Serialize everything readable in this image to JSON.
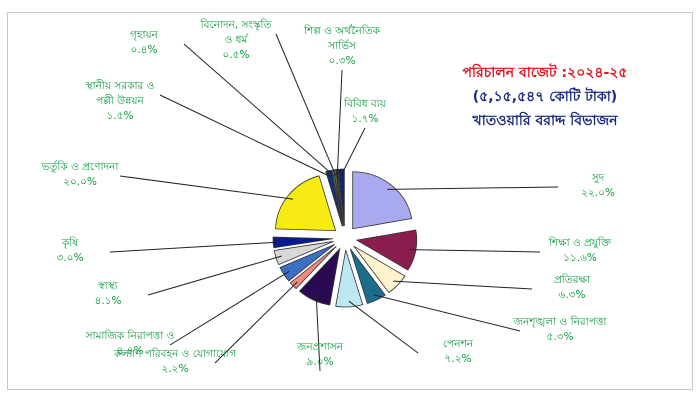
{
  "chart_data": {
    "type": "pie",
    "title": "পরিচালন বাজেট :২০২৪-২৫",
    "subtitle": "(৫,১৫,৫৪৭ কোটি টাকা)",
    "subtitle2": "খাতওয়ারি বরাদ্দ বিভাজন",
    "slices": [
      {
        "lines": [
          "সুদ",
          "২২.০%"
        ],
        "value": 22.0,
        "color": "#a9a9f0"
      },
      {
        "lines": [
          "শিক্ষা ও প্রযুক্তি",
          "১১.৬%"
        ],
        "value": 11.6,
        "color": "#8a1f4f"
      },
      {
        "lines": [
          "প্রতিরক্ষা",
          "৬.৩%"
        ],
        "value": 6.3,
        "color": "#fff2cc"
      },
      {
        "lines": [
          "জনশৃঙ্খলা ও নিরাপত্তা",
          "৫.৩%"
        ],
        "value": 5.3,
        "color": "#1a6e8c"
      },
      {
        "lines": [
          "পেনশন",
          "৭.২%"
        ],
        "value": 7.2,
        "color": "#bde8f2"
      },
      {
        "lines": [
          "জনপ্রশাসন",
          "৯.০%"
        ],
        "value": 9.0,
        "color": "#2a0a52"
      },
      {
        "lines": [
          "কল্যাণ পরিবহন ও যোগাযোগ",
          "২.২%"
        ],
        "value": 2.2,
        "color": "#f08a80"
      },
      {
        "lines": [
          "সামাজিক নিরাপত্তা ও",
          "৪.৪%"
        ],
        "value": 4.4,
        "color": "#3a6fc4"
      },
      {
        "lines": [
          "স্বাস্থ্য",
          "৪.১%"
        ],
        "value": 4.1,
        "color": "#d8d8d8"
      },
      {
        "lines": [
          "কৃষি",
          "৩.০%"
        ],
        "value": 3.0,
        "color": "#0b1a90"
      },
      {
        "lines": [
          "ভর্তুকি ও প্রণোদনা",
          "২০.০%"
        ],
        "value": 20.0,
        "color": "#f6ec14"
      },
      {
        "lines": [
          "স্থানীয় সরকার ও",
          "পল্লী উন্নয়ন",
          "১.৫%"
        ],
        "value": 1.5,
        "color": "#17306e"
      },
      {
        "lines": [
          "গৃহায়ন",
          "০.৪%"
        ],
        "value": 0.4,
        "color": "#3fb3a8"
      },
      {
        "lines": [
          "বিনোদন, সংস্কৃতি",
          "ও ধর্ম",
          "০.৫%"
        ],
        "value": 0.5,
        "color": "#6b7a20"
      },
      {
        "lines": [
          "শিল্প ও অর্থনৈতিক",
          "সার্ভিস",
          "০.৩%"
        ],
        "value": 0.3,
        "color": "#20201a"
      },
      {
        "lines": [
          "বিবিধ ব্যয়",
          "১.৭%"
        ],
        "value": 1.7,
        "color": "#142470"
      }
    ],
    "legend": "none",
    "colors": {
      "label": "#0a9a3a",
      "title": "#e0141c",
      "subtitle": "#1a2a80",
      "leader": "#222222"
    }
  }
}
